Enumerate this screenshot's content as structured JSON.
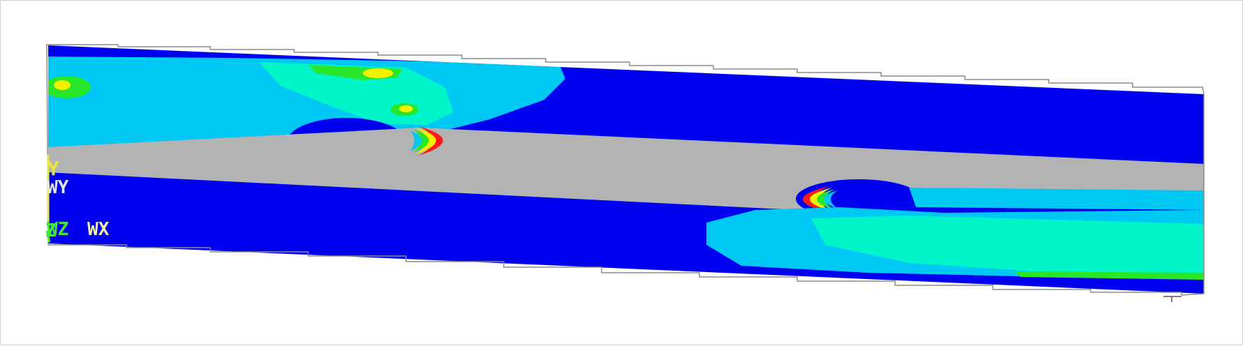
{
  "colors": {
    "background": "#ffffff",
    "outline": "#8c8c8c",
    "band_1_blue": "#0000f0",
    "band_2_light_blue": "#00c8f5",
    "band_3_cyan": "#00f5c8",
    "band_4_green": "#28e628",
    "band_5_yellow": "#f0f000",
    "band_6_orange": "#ff9900",
    "band_7_red": "#ff1a1a",
    "gray_zone": "#b3b3b3"
  },
  "triad": {
    "y_axis": "Y",
    "wcs_y": "WY",
    "z_axis": "Z",
    "wcs_z": "WZ",
    "wcs_x": "WX",
    "y_color": "#e6e640",
    "z_color": "#40e640",
    "x_color": "#f0f0a0"
  }
}
